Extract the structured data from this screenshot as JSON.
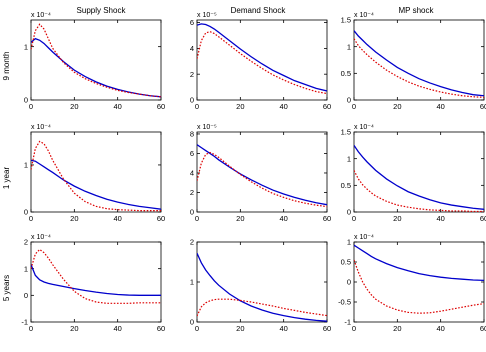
{
  "chart_data": {
    "type": "line",
    "layout": "3x3 grid of line plots",
    "column_titles": [
      "Supply Shock",
      "Demand Shock",
      "MP shock"
    ],
    "row_labels": [
      "9 month",
      "1 year",
      "5 years"
    ],
    "series_styles": [
      {
        "color": "#0000cc",
        "dash": "solid"
      },
      {
        "color": "#dd0000",
        "dash": "dotted"
      }
    ],
    "x_ticks": [
      0,
      20,
      40,
      60
    ],
    "xlim": [
      0,
      60
    ],
    "panels": [
      {
        "row": 0,
        "col": 0,
        "scale_label": "x 10⁻⁴",
        "ylim": [
          0,
          1.5
        ],
        "y_ticks": [
          0,
          1
        ],
        "x": [
          0,
          2,
          4,
          6,
          8,
          10,
          15,
          20,
          25,
          30,
          35,
          40,
          45,
          50,
          55,
          60
        ],
        "series": [
          {
            "values": [
              1.08,
              1.15,
              1.12,
              1.06,
              0.98,
              0.9,
              0.72,
              0.56,
              0.44,
              0.34,
              0.26,
              0.2,
              0.15,
              0.11,
              0.08,
              0.06
            ]
          },
          {
            "values": [
              0.95,
              1.3,
              1.42,
              1.33,
              1.15,
              0.97,
              0.7,
              0.52,
              0.4,
              0.31,
              0.24,
              0.18,
              0.14,
              0.11,
              0.08,
              0.06
            ]
          }
        ]
      },
      {
        "row": 0,
        "col": 1,
        "scale_label": "x 10⁻⁵",
        "ylim": [
          0,
          6.2
        ],
        "y_ticks": [
          0,
          2,
          4,
          6
        ],
        "x": [
          0,
          2,
          4,
          6,
          8,
          10,
          15,
          20,
          25,
          30,
          35,
          40,
          45,
          50,
          55,
          60
        ],
        "series": [
          {
            "values": [
              5.8,
              5.9,
              5.85,
              5.7,
              5.5,
              5.25,
              4.6,
              3.95,
              3.35,
              2.8,
              2.3,
              1.9,
              1.5,
              1.2,
              0.9,
              0.7
            ]
          },
          {
            "values": [
              3.2,
              4.6,
              5.2,
              5.3,
              5.15,
              4.9,
              4.25,
              3.6,
              3.0,
              2.45,
              1.95,
              1.55,
              1.2,
              0.9,
              0.65,
              0.5
            ]
          }
        ]
      },
      {
        "row": 0,
        "col": 2,
        "scale_label": "x 10⁻⁴",
        "ylim": [
          0,
          1.5
        ],
        "y_ticks": [
          0,
          0.5,
          1,
          1.5
        ],
        "x": [
          0,
          2,
          4,
          6,
          8,
          10,
          15,
          20,
          25,
          30,
          35,
          40,
          45,
          50,
          55,
          60
        ],
        "series": [
          {
            "values": [
              1.3,
              1.2,
              1.12,
              1.04,
              0.97,
              0.9,
              0.75,
              0.61,
              0.5,
              0.4,
              0.32,
              0.25,
              0.19,
              0.14,
              0.1,
              0.08
            ]
          },
          {
            "values": [
              1.15,
              1.02,
              0.93,
              0.85,
              0.78,
              0.71,
              0.56,
              0.44,
              0.34,
              0.26,
              0.2,
              0.15,
              0.11,
              0.08,
              0.06,
              0.05
            ]
          }
        ]
      },
      {
        "row": 1,
        "col": 0,
        "scale_label": "x 10⁻⁴",
        "ylim": [
          0,
          1.7
        ],
        "y_ticks": [
          0,
          1
        ],
        "x": [
          0,
          2,
          4,
          6,
          8,
          10,
          15,
          20,
          25,
          30,
          35,
          40,
          45,
          50,
          55,
          60
        ],
        "series": [
          {
            "values": [
              1.1,
              1.08,
              1.02,
              0.96,
              0.9,
              0.84,
              0.68,
              0.55,
              0.44,
              0.35,
              0.27,
              0.21,
              0.16,
              0.12,
              0.09,
              0.06
            ]
          },
          {
            "values": [
              0.9,
              1.35,
              1.5,
              1.45,
              1.3,
              1.1,
              0.7,
              0.4,
              0.22,
              0.12,
              0.07,
              0.05,
              0.04,
              0.03,
              0.03,
              0.03
            ]
          }
        ]
      },
      {
        "row": 1,
        "col": 1,
        "scale_label": "x 10⁻⁵",
        "ylim": [
          0,
          8.2
        ],
        "y_ticks": [
          0,
          2,
          4,
          6,
          8
        ],
        "x": [
          0,
          2,
          4,
          6,
          8,
          10,
          15,
          20,
          25,
          30,
          35,
          40,
          45,
          50,
          55,
          60
        ],
        "series": [
          {
            "values": [
              6.9,
              6.6,
              6.3,
              6.0,
              5.7,
              5.35,
              4.6,
              3.9,
              3.3,
              2.75,
              2.25,
              1.85,
              1.5,
              1.2,
              0.95,
              0.75
            ]
          },
          {
            "values": [
              3.2,
              5.0,
              5.9,
              6.1,
              5.9,
              5.6,
              4.7,
              3.85,
              3.1,
              2.45,
              1.9,
              1.5,
              1.15,
              0.9,
              0.7,
              0.55
            ]
          }
        ]
      },
      {
        "row": 1,
        "col": 2,
        "scale_label": "x 10⁻⁴",
        "ylim": [
          0,
          1.5
        ],
        "y_ticks": [
          0,
          0.5,
          1,
          1.5
        ],
        "x": [
          0,
          2,
          4,
          6,
          8,
          10,
          15,
          20,
          25,
          30,
          35,
          40,
          45,
          50,
          55,
          60
        ],
        "series": [
          {
            "values": [
              1.25,
              1.13,
              1.03,
              0.94,
              0.86,
              0.78,
              0.62,
              0.49,
              0.38,
              0.3,
              0.23,
              0.17,
              0.13,
              0.1,
              0.07,
              0.05
            ]
          },
          {
            "values": [
              0.78,
              0.62,
              0.51,
              0.43,
              0.36,
              0.3,
              0.2,
              0.13,
              0.09,
              0.06,
              0.04,
              0.03,
              0.02,
              0.02,
              0.01,
              0.01
            ]
          }
        ]
      },
      {
        "row": 2,
        "col": 0,
        "scale_label": "x 10⁻⁴",
        "ylim": [
          -1,
          2
        ],
        "y_ticks": [
          -1,
          0,
          1,
          2
        ],
        "x": [
          0,
          2,
          4,
          6,
          8,
          10,
          15,
          20,
          25,
          30,
          35,
          40,
          45,
          50,
          55,
          60
        ],
        "series": [
          {
            "values": [
              1.15,
              0.75,
              0.58,
              0.5,
              0.45,
              0.41,
              0.33,
              0.25,
              0.18,
              0.12,
              0.07,
              0.03,
              0.01,
              0.0,
              0.0,
              0.0
            ]
          },
          {
            "values": [
              1.0,
              1.55,
              1.72,
              1.6,
              1.4,
              1.15,
              0.6,
              0.15,
              -0.12,
              -0.25,
              -0.3,
              -0.3,
              -0.3,
              -0.28,
              -0.28,
              -0.28
            ]
          }
        ]
      },
      {
        "row": 2,
        "col": 1,
        "scale_label": "",
        "ylim": [
          0,
          2
        ],
        "y_ticks": [
          0,
          1,
          2
        ],
        "x": [
          0,
          2,
          4,
          6,
          8,
          10,
          15,
          20,
          25,
          30,
          35,
          40,
          45,
          50,
          55,
          60
        ],
        "series": [
          {
            "values": [
              1.72,
              1.48,
              1.3,
              1.16,
              1.03,
              0.92,
              0.7,
              0.53,
              0.4,
              0.3,
              0.22,
              0.16,
              0.11,
              0.07,
              0.04,
              0.02
            ]
          },
          {
            "values": [
              0.15,
              0.38,
              0.48,
              0.53,
              0.56,
              0.57,
              0.57,
              0.54,
              0.5,
              0.45,
              0.4,
              0.34,
              0.29,
              0.24,
              0.2,
              0.16
            ]
          }
        ]
      },
      {
        "row": 2,
        "col": 2,
        "scale_label": "x 10⁻⁴",
        "ylim": [
          -1,
          1
        ],
        "y_ticks": [
          -1,
          -0.5,
          0,
          0.5,
          1
        ],
        "x": [
          0,
          2,
          4,
          6,
          8,
          10,
          15,
          20,
          25,
          30,
          35,
          40,
          45,
          50,
          55,
          60
        ],
        "series": [
          {
            "values": [
              0.92,
              0.85,
              0.78,
              0.71,
              0.64,
              0.58,
              0.46,
              0.36,
              0.28,
              0.21,
              0.16,
              0.12,
              0.09,
              0.07,
              0.05,
              0.04
            ]
          },
          {
            "values": [
              0.55,
              0.25,
              0.0,
              -0.18,
              -0.32,
              -0.43,
              -0.6,
              -0.7,
              -0.76,
              -0.78,
              -0.77,
              -0.73,
              -0.68,
              -0.63,
              -0.58,
              -0.54
            ]
          }
        ]
      }
    ]
  }
}
